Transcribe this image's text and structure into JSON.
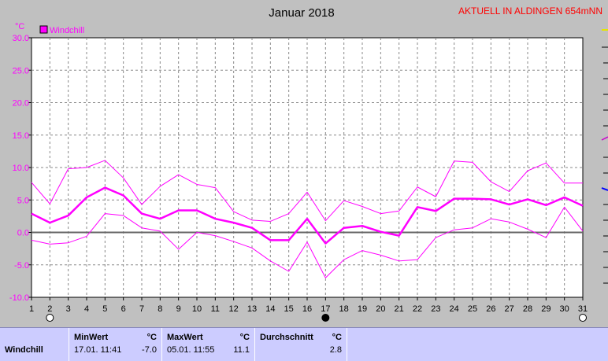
{
  "chart_data": {
    "type": "line",
    "title": "Januar 2018",
    "unit_label": "°C",
    "station": "AKTUELL IN ALDINGEN 654mNN",
    "legend": [
      {
        "name": "Windchill",
        "color": "#ff00ff"
      }
    ],
    "ylim": [
      -10,
      30
    ],
    "yticks": [
      "30.0",
      "25.0",
      "20.0",
      "15.0",
      "10.0",
      "5.0",
      "0.0",
      "-5.0",
      "-10.0"
    ],
    "ytick_values": [
      30,
      25,
      20,
      15,
      10,
      5,
      0,
      -5,
      -10
    ],
    "xlim": [
      1,
      31
    ],
    "xticks": [
      "1",
      "2",
      "3",
      "4",
      "5",
      "6",
      "7",
      "8",
      "9",
      "10",
      "11",
      "12",
      "13",
      "14",
      "15",
      "16",
      "17",
      "18",
      "19",
      "20",
      "21",
      "22",
      "23",
      "24",
      "25",
      "26",
      "27",
      "28",
      "29",
      "30",
      "31"
    ],
    "x": [
      1,
      2,
      3,
      4,
      5,
      6,
      7,
      8,
      9,
      10,
      11,
      12,
      13,
      14,
      15,
      16,
      17,
      18,
      19,
      20,
      21,
      22,
      23,
      24,
      25,
      26,
      27,
      28,
      29,
      30,
      31
    ],
    "series": [
      {
        "name": "Windchill",
        "role": "mean",
        "color": "#ff00ff",
        "values": [
          2.9,
          1.5,
          2.6,
          5.4,
          6.9,
          5.7,
          2.9,
          2.1,
          3.4,
          3.4,
          2.1,
          1.5,
          0.7,
          -1.2,
          -1.2,
          2.1,
          -1.7,
          0.7,
          1.0,
          0.1,
          -0.5,
          3.9,
          3.3,
          5.2,
          5.2,
          5.1,
          4.3,
          5.1,
          4.2,
          5.4,
          4.1
        ]
      },
      {
        "role": "max",
        "color": "#ff00ff",
        "values": [
          7.7,
          4.4,
          9.8,
          10.0,
          11.1,
          8.4,
          4.3,
          7.1,
          8.9,
          7.4,
          6.9,
          3.2,
          1.9,
          1.7,
          2.9,
          6.2,
          1.8,
          4.9,
          4.0,
          2.9,
          3.3,
          7.0,
          5.5,
          11.0,
          10.8,
          7.8,
          6.3,
          9.5,
          10.7,
          7.6,
          7.6
        ]
      },
      {
        "role": "min",
        "color": "#ff00ff",
        "values": [
          -1.2,
          -1.8,
          -1.6,
          -0.6,
          2.9,
          2.6,
          0.7,
          0.2,
          -2.6,
          0.0,
          -0.5,
          -1.4,
          -2.4,
          -4.4,
          -6.0,
          -1.5,
          -7.0,
          -4.2,
          -2.8,
          -3.5,
          -4.4,
          -4.2,
          -0.8,
          0.4,
          0.7,
          2.1,
          1.6,
          0.5,
          -0.8,
          3.9,
          0.2
        ]
      }
    ],
    "moon_markers": [
      {
        "day": 2,
        "phase": "full"
      },
      {
        "day": 17,
        "phase": "new"
      },
      {
        "day": 31,
        "phase": "full"
      }
    ],
    "grid": true
  },
  "stats": {
    "row_label": "Windchill",
    "min": {
      "label": "MinWert",
      "unit": "°C",
      "date": "17.01. 11:41",
      "value": "-7.0"
    },
    "max": {
      "label": "MaxWert",
      "unit": "°C",
      "date": "05.01. 11:55",
      "value": "11.1"
    },
    "avg": {
      "label": "Durchschnitt",
      "unit": "°C",
      "value": "2.8"
    }
  }
}
